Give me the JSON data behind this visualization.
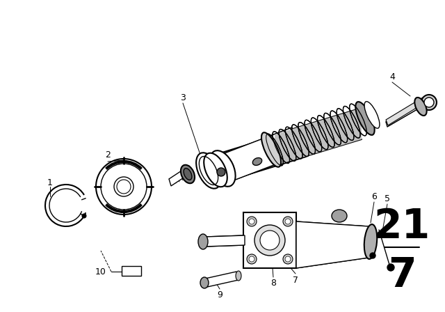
{
  "background_color": "#ffffff",
  "line_color": "#000000",
  "page_number_top": "21",
  "page_number_bottom": "7",
  "page_num_fontsize": 42
}
